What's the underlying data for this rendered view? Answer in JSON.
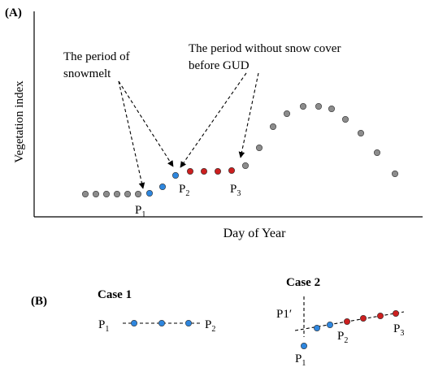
{
  "panel_a": {
    "label": "(A)",
    "y_axis_label": "Vegetation index",
    "x_axis_label": "Day of Year",
    "annotation_snowmelt": [
      "The period of",
      "snowmelt"
    ],
    "annotation_no_snow": [
      "The period without snow cover",
      "before GUD"
    ],
    "points": {
      "p1": {
        "letter": "P",
        "sub": "1"
      },
      "p2": {
        "letter": "P",
        "sub": "2"
      },
      "p3": {
        "letter": "P",
        "sub": "3"
      }
    }
  },
  "panel_b": {
    "label": "(B)",
    "case1": {
      "title": "Case 1",
      "left": {
        "letter": "P",
        "sub": "1"
      },
      "right": {
        "letter": "P",
        "sub": "2"
      }
    },
    "case2": {
      "title": "Case 2",
      "p1_prime": "P1′",
      "p1": {
        "letter": "P",
        "sub": "1"
      },
      "p2": {
        "letter": "P",
        "sub": "2"
      },
      "p3": {
        "letter": "P",
        "sub": "3"
      }
    }
  },
  "colors": {
    "gray": "#8c8c8c",
    "blue": "#2e86de",
    "red": "#cc1f1f",
    "outline": "#333333"
  }
}
